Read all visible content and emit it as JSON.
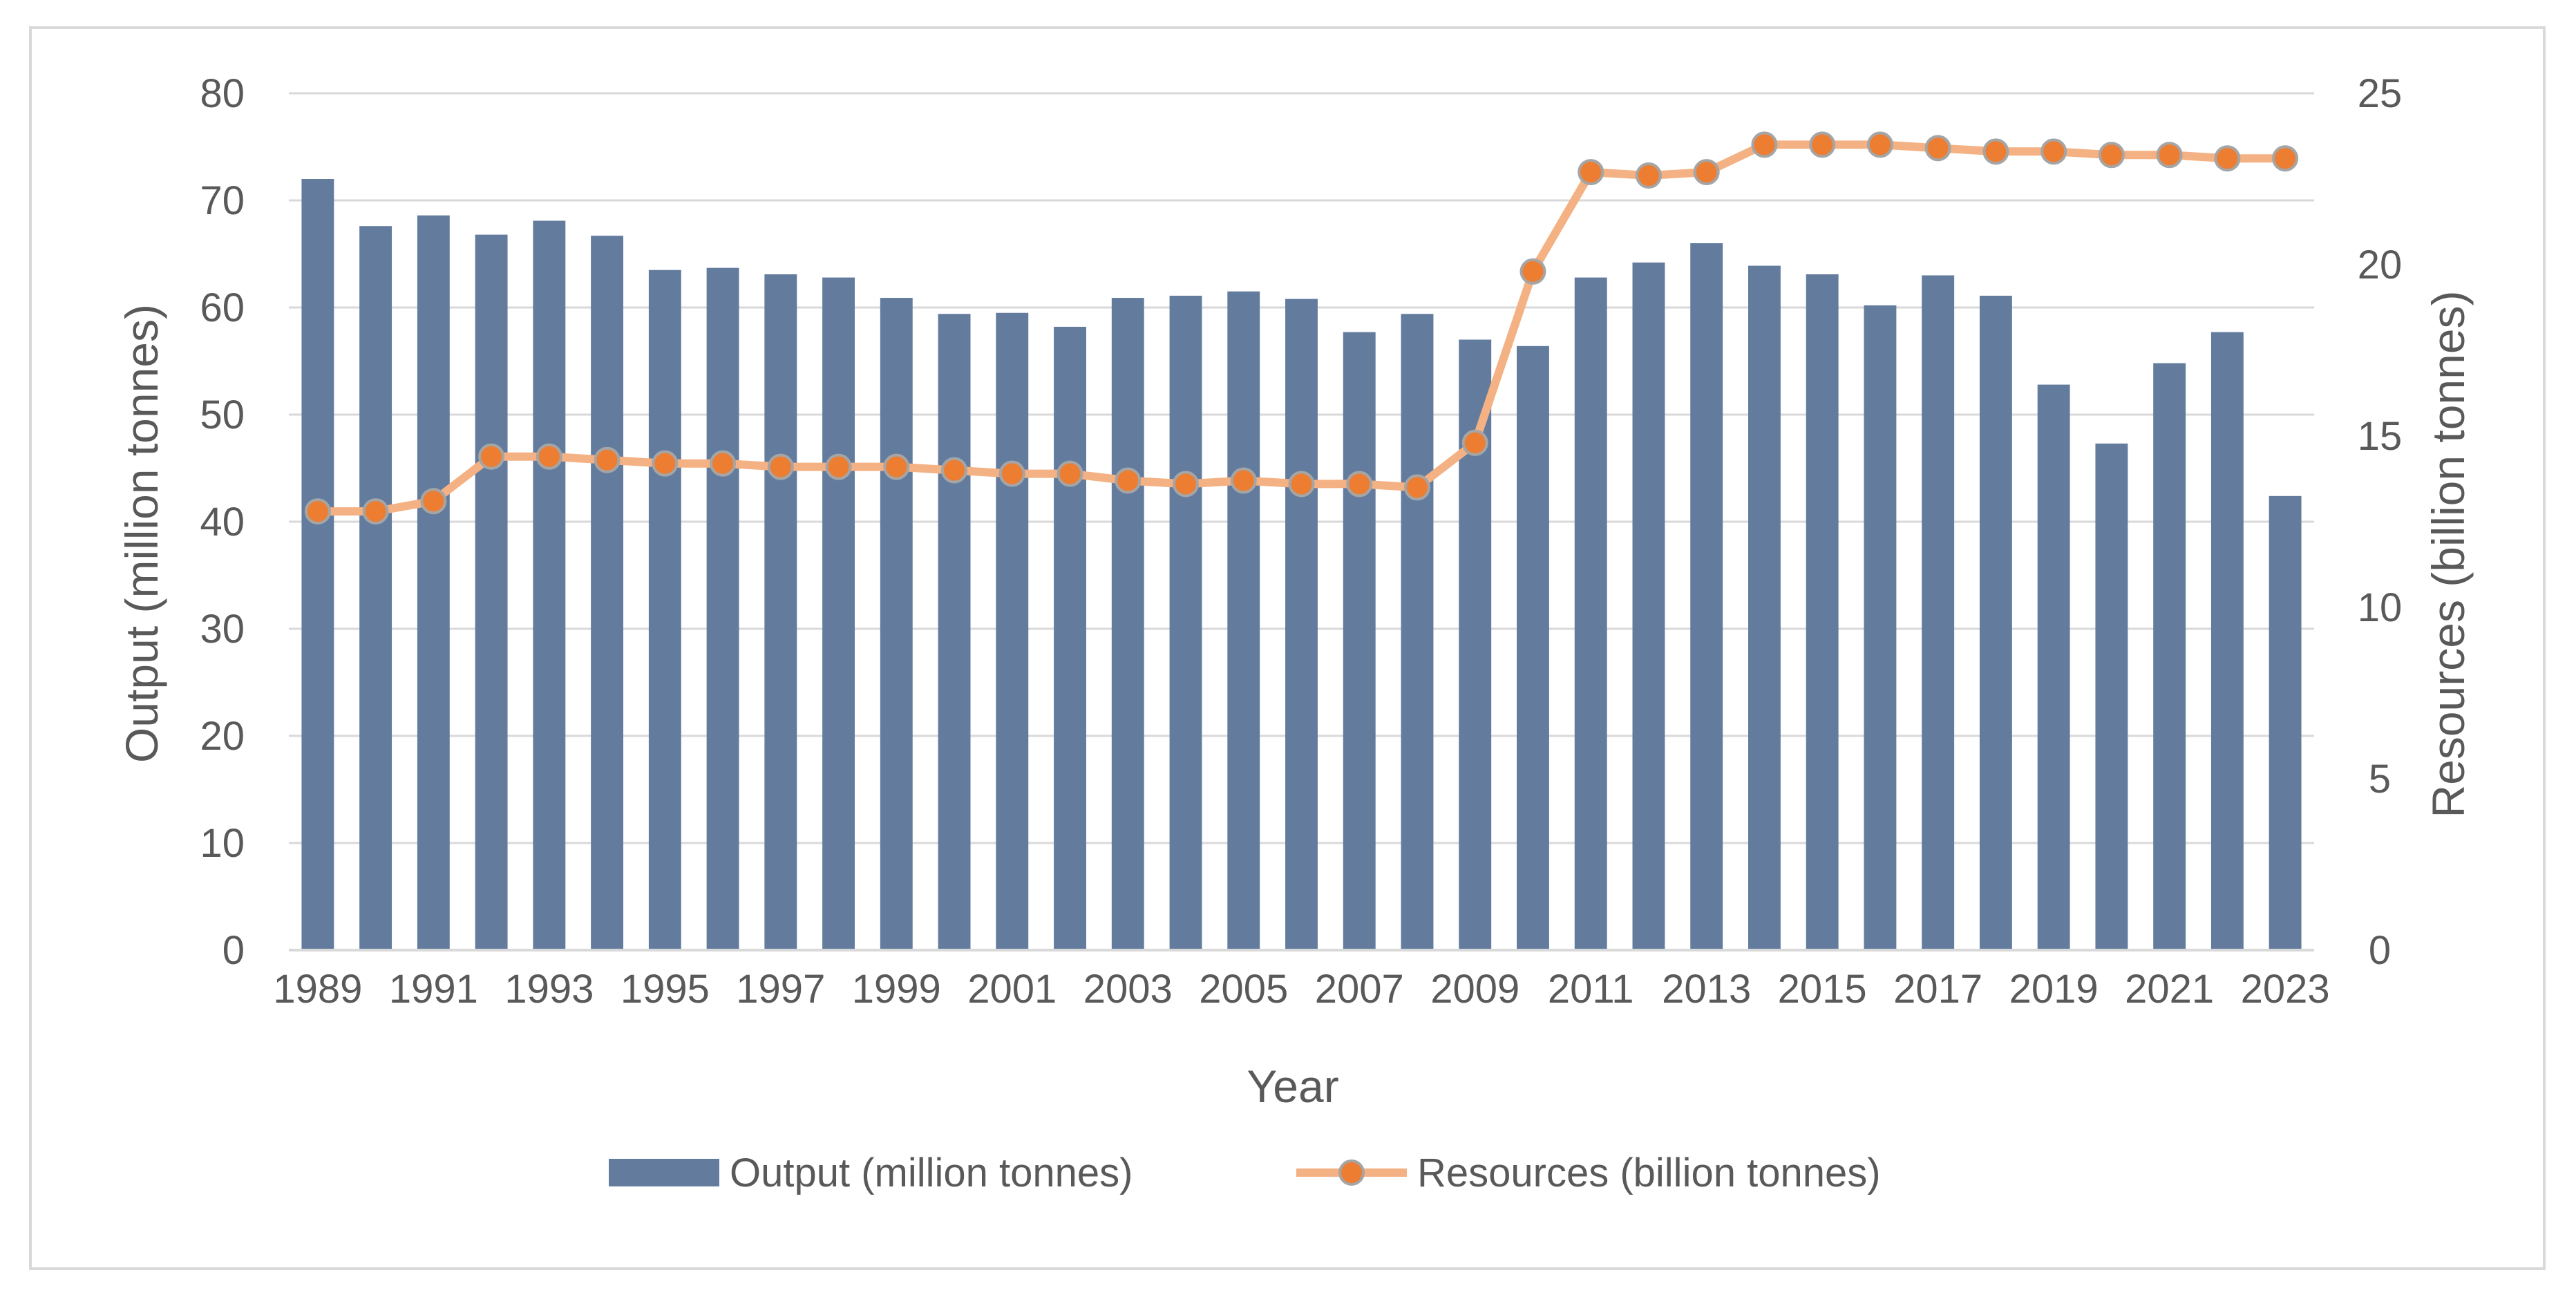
{
  "chart_data": {
    "type": "bar+line",
    "title": "",
    "xlabel": "Year",
    "ylabel": "Output (million tonnes)",
    "y2label": "Resources (billion tonnes)",
    "ylim": [
      0,
      80
    ],
    "y2lim": [
      0,
      25
    ],
    "yticks": [
      "0",
      "10",
      "20",
      "30",
      "40",
      "50",
      "60",
      "70",
      "80"
    ],
    "y2ticks": [
      "0",
      "5",
      "10",
      "15",
      "20",
      "25"
    ],
    "categories": [
      "1989",
      "1990",
      "1991",
      "1992",
      "1993",
      "1994",
      "1995",
      "1996",
      "1997",
      "1998",
      "1999",
      "2000",
      "2001",
      "2002",
      "2003",
      "2004",
      "2005",
      "2006",
      "2007",
      "2008",
      "2009",
      "2010",
      "2011",
      "2012",
      "2013",
      "2014",
      "2015",
      "2016",
      "2017",
      "2018",
      "2019",
      "2020",
      "2021",
      "2022",
      "2023"
    ],
    "xtick_labels": [
      "1989",
      "",
      "1991",
      "",
      "1993",
      "",
      "1995",
      "",
      "1997",
      "",
      "1999",
      "",
      "2001",
      "",
      "2003",
      "",
      "2005",
      "",
      "2007",
      "",
      "2009",
      "",
      "2011",
      "",
      "2013",
      "",
      "2015",
      "",
      "2017",
      "",
      "2019",
      "",
      "2021",
      "",
      "2023"
    ],
    "grid": true,
    "legend_position": "bottom",
    "series": [
      {
        "name": "Output (million tonnes)",
        "type": "bar",
        "axis": "left",
        "color": "#637c9e",
        "values": [
          72,
          67.6,
          68.6,
          66.8,
          68.1,
          66.7,
          63.5,
          63.7,
          63.1,
          62.8,
          60.9,
          59.4,
          59.5,
          58.2,
          60.9,
          61.1,
          61.5,
          60.8,
          57.7,
          59.4,
          57.0,
          56.4,
          62.8,
          64.2,
          66.0,
          63.9,
          63.1,
          60.2,
          63.0,
          61.1,
          52.8,
          47.3,
          54.8,
          57.7,
          42.4
        ]
      },
      {
        "name": "Resources (billion tonnes)",
        "type": "line",
        "axis": "right",
        "color": "#f4b183",
        "marker_color": "#ed7d31",
        "values": [
          12.8,
          12.8,
          13.1,
          14.4,
          14.4,
          14.3,
          14.2,
          14.2,
          14.1,
          14.1,
          14.1,
          14.0,
          13.9,
          13.9,
          13.7,
          13.6,
          13.7,
          13.6,
          13.6,
          13.5,
          14.8,
          19.8,
          22.7,
          22.6,
          22.7,
          23.5,
          23.5,
          23.5,
          23.4,
          23.3,
          23.3,
          23.2,
          23.2,
          23.1,
          23.1
        ]
      }
    ]
  }
}
